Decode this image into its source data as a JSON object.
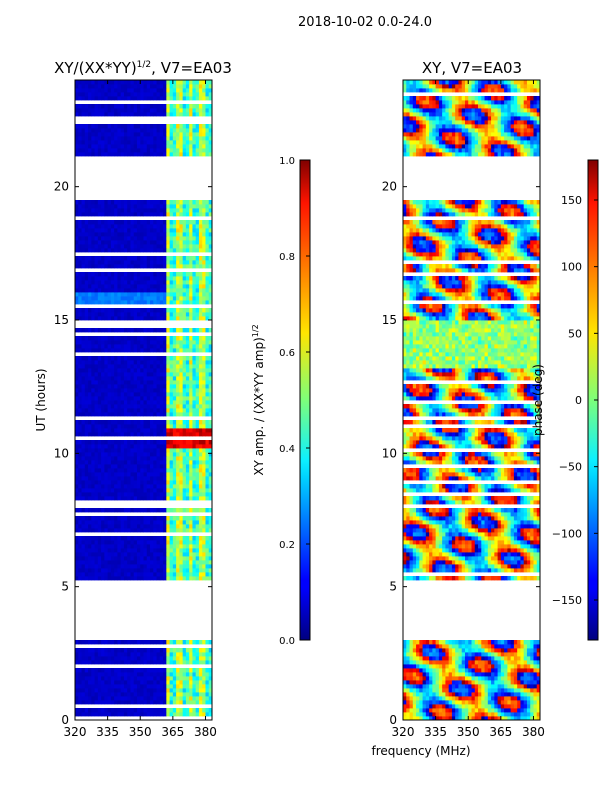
{
  "figure": {
    "suptitle": "2018-10-02 0.0-24.0",
    "xlabel_shared": "frequency (MHz)"
  },
  "chart_data": [
    {
      "type": "heatmap",
      "title": "XY/(XX*YY)^1/2, V7=EA03",
      "title_main": "XY/(XX*YY)",
      "title_sup": "1/2",
      "title_tail": ", V7=EA03",
      "xlabel": "frequency (MHz)",
      "ylabel": "UT (hours)",
      "xlim": [
        320,
        383
      ],
      "ylim": [
        0,
        24
      ],
      "xticks": [
        320,
        335,
        350,
        365,
        380
      ],
      "yticks": [
        0,
        5,
        10,
        15,
        20
      ],
      "colorbar": {
        "label": "XY amp. / (XX*YY amp)^1/2",
        "label_main": "XY amp. / (XX*YY amp)",
        "label_sup": "1/2",
        "range": [
          0.0,
          1.0
        ],
        "ticks": [
          0.0,
          0.2,
          0.4,
          0.6,
          0.8,
          1.0
        ],
        "tick_labels": [
          "0.0",
          "0.2",
          "0.4",
          "0.6",
          "0.8",
          "1.0"
        ],
        "colormap": "jet"
      },
      "description_of_values": "Amplitude is near 0.0 for 320-362 MHz across all observed hours; elevated amplitude (~0.4-0.6) in 363-381 MHz band; brief peak (~0.8-1.0) near 10.5 UT; broadband elevated (~0.25) near 15.7 UT. No data for ~3.0-5.2 UT and ~19.5-21.2 UT."
    },
    {
      "type": "heatmap",
      "title": "XY, V7=EA03",
      "xlabel": "frequency (MHz)",
      "ylabel": "UT (hours)",
      "xlim": [
        320,
        383
      ],
      "ylim": [
        0,
        24
      ],
      "xticks": [
        320,
        335,
        350,
        365,
        380
      ],
      "yticks": [
        0,
        5,
        10,
        15,
        20
      ],
      "colorbar": {
        "label": "phase (deg)",
        "range": [
          -180,
          180
        ],
        "ticks": [
          -150,
          -100,
          -50,
          0,
          50,
          100,
          150
        ],
        "tick_labels": [
          "−150",
          "−100",
          "−50",
          "0",
          "50",
          "100",
          "150"
        ],
        "colormap": "jet"
      },
      "description_of_values": "Phase spans the full range -180 to 180 deg with strong variation in time and frequency. Data gaps near ~3.0-5.2 UT and ~19.5-21.2 UT."
    }
  ]
}
